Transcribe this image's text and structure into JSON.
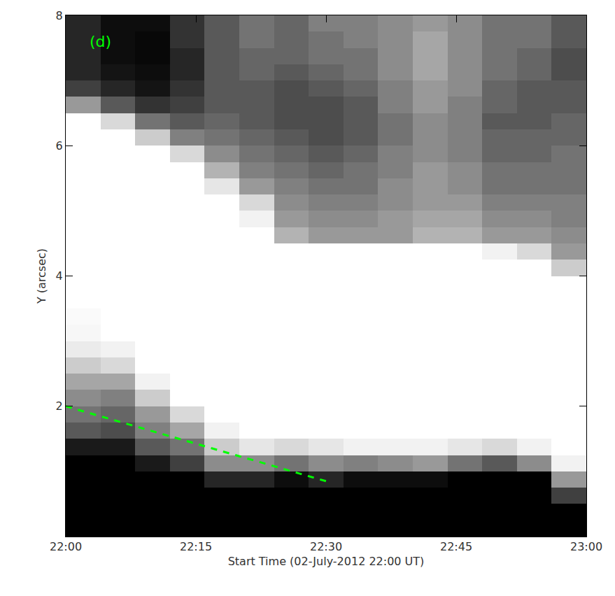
{
  "chart_data": {
    "type": "heatmap",
    "xlabel": "Start Time (02-July-2012 22:00 UT)",
    "ylabel": "Y (arcsec)",
    "xlim": [
      0,
      60
    ],
    "ylim": [
      0,
      8
    ],
    "xticks": [
      {
        "value": 0,
        "label": "22:00"
      },
      {
        "value": 15,
        "label": "22:15"
      },
      {
        "value": 30,
        "label": "22:30"
      },
      {
        "value": 45,
        "label": "22:45"
      },
      {
        "value": 60,
        "label": "23:00"
      }
    ],
    "yticks": [
      2,
      4,
      6,
      8
    ],
    "zlim": [
      0,
      100
    ],
    "color": "gray",
    "x": [
      2,
      6,
      10,
      14,
      18,
      22,
      26,
      30,
      34,
      38,
      42,
      46,
      50,
      54,
      58
    ],
    "y": [
      0.125,
      0.375,
      0.625,
      0.875,
      1.125,
      1.375,
      1.625,
      1.875,
      2.125,
      2.375,
      2.625,
      2.875,
      3.125,
      3.375,
      3.625,
      3.875,
      4.125,
      4.375,
      4.625,
      4.875,
      5.125,
      5.375,
      5.625,
      5.875,
      6.125,
      6.375,
      6.625,
      6.875,
      7.125,
      7.375,
      7.625,
      7.875
    ],
    "z": [
      [
        0,
        0,
        0,
        0,
        0,
        0,
        0,
        0,
        0,
        0,
        0,
        0,
        0,
        0,
        0
      ],
      [
        0,
        0,
        0,
        0,
        0,
        0,
        0,
        0,
        0,
        0,
        0,
        0,
        0,
        0,
        0
      ],
      [
        0,
        0,
        0,
        0,
        0,
        0,
        0,
        0,
        0,
        0,
        0,
        0,
        0,
        0,
        25
      ],
      [
        0,
        0,
        0,
        0,
        15,
        15,
        5,
        15,
        5,
        5,
        5,
        0,
        0,
        0,
        60
      ],
      [
        0,
        0,
        10,
        25,
        55,
        55,
        45,
        55,
        50,
        55,
        60,
        45,
        35,
        55,
        95
      ],
      [
        10,
        10,
        35,
        45,
        80,
        90,
        85,
        90,
        95,
        95,
        95,
        90,
        85,
        95,
        100
      ],
      [
        35,
        30,
        50,
        65,
        95,
        100,
        100,
        100,
        100,
        100,
        100,
        100,
        100,
        100,
        100
      ],
      [
        45,
        40,
        60,
        85,
        100,
        100,
        100,
        100,
        100,
        100,
        100,
        100,
        100,
        100,
        100
      ],
      [
        55,
        50,
        80,
        100,
        100,
        100,
        100,
        100,
        100,
        100,
        100,
        100,
        100,
        100,
        100
      ],
      [
        65,
        65,
        95,
        100,
        100,
        100,
        100,
        100,
        100,
        100,
        100,
        100,
        100,
        100,
        100
      ],
      [
        80,
        85,
        100,
        100,
        100,
        100,
        100,
        100,
        100,
        100,
        100,
        100,
        100,
        100,
        100
      ],
      [
        92,
        95,
        100,
        100,
        100,
        100,
        100,
        100,
        100,
        100,
        100,
        100,
        100,
        100,
        100
      ],
      [
        97,
        100,
        100,
        100,
        100,
        100,
        100,
        100,
        100,
        100,
        100,
        100,
        100,
        100,
        100
      ],
      [
        98,
        100,
        100,
        100,
        100,
        100,
        100,
        100,
        100,
        100,
        100,
        100,
        100,
        100,
        100
      ],
      [
        100,
        100,
        100,
        100,
        100,
        100,
        100,
        100,
        100,
        100,
        100,
        100,
        100,
        100,
        100
      ],
      [
        100,
        100,
        100,
        100,
        100,
        100,
        100,
        100,
        100,
        100,
        100,
        100,
        100,
        100,
        100
      ],
      [
        100,
        100,
        100,
        100,
        100,
        100,
        100,
        100,
        100,
        100,
        100,
        100,
        100,
        100,
        80
      ],
      [
        100,
        100,
        100,
        100,
        100,
        100,
        100,
        100,
        100,
        100,
        100,
        100,
        95,
        85,
        60
      ],
      [
        100,
        100,
        100,
        100,
        100,
        100,
        70,
        60,
        60,
        60,
        70,
        70,
        60,
        60,
        55
      ],
      [
        100,
        100,
        100,
        100,
        100,
        95,
        60,
        55,
        55,
        60,
        65,
        65,
        55,
        55,
        50
      ],
      [
        100,
        100,
        100,
        100,
        100,
        85,
        55,
        50,
        50,
        55,
        60,
        60,
        50,
        50,
        50
      ],
      [
        100,
        100,
        100,
        100,
        90,
        60,
        50,
        45,
        45,
        55,
        60,
        55,
        45,
        45,
        45
      ],
      [
        100,
        100,
        100,
        100,
        70,
        50,
        45,
        40,
        45,
        50,
        60,
        55,
        45,
        45,
        45
      ],
      [
        100,
        100,
        100,
        85,
        55,
        45,
        40,
        35,
        40,
        50,
        55,
        50,
        40,
        40,
        45
      ],
      [
        100,
        100,
        80,
        50,
        45,
        40,
        35,
        30,
        35,
        45,
        55,
        50,
        40,
        40,
        40
      ],
      [
        100,
        85,
        45,
        35,
        40,
        35,
        30,
        30,
        35,
        45,
        55,
        50,
        35,
        35,
        40
      ],
      [
        60,
        35,
        20,
        25,
        35,
        35,
        30,
        30,
        35,
        50,
        60,
        50,
        40,
        35,
        35
      ],
      [
        25,
        15,
        8,
        20,
        35,
        35,
        30,
        35,
        40,
        50,
        60,
        55,
        40,
        35,
        35
      ],
      [
        15,
        8,
        5,
        15,
        35,
        40,
        35,
        40,
        45,
        55,
        65,
        55,
        45,
        40,
        30
      ],
      [
        15,
        5,
        3,
        15,
        35,
        40,
        40,
        45,
        45,
        55,
        65,
        55,
        45,
        40,
        30
      ],
      [
        15,
        5,
        3,
        20,
        35,
        45,
        40,
        45,
        50,
        55,
        65,
        55,
        45,
        45,
        35
      ],
      [
        15,
        5,
        5,
        20,
        35,
        45,
        40,
        50,
        50,
        55,
        60,
        55,
        45,
        45,
        35
      ]
    ],
    "series": [
      {
        "type": "line",
        "line_style": "dash",
        "color": "#00ff00",
        "x": [
          0,
          30
        ],
        "y": [
          2,
          0.85
        ]
      }
    ],
    "annotations": [
      {
        "text": "(d)",
        "x": 4,
        "y": 7.6,
        "color": "#00ff00"
      }
    ]
  }
}
